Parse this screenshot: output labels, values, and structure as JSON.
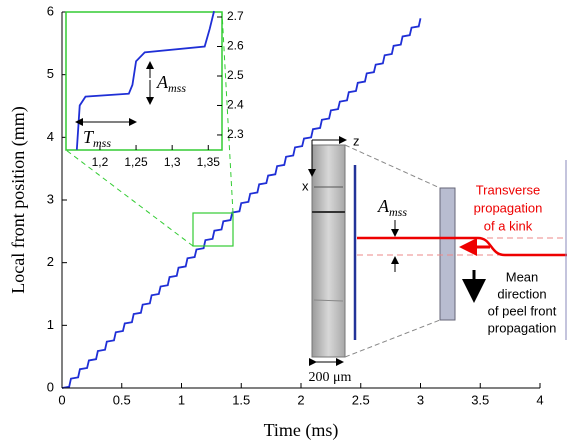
{
  "chart_data": [
    {
      "type": "line",
      "x_label": "Time (ms)",
      "y_label": "Local front position (mm)",
      "color": "#1f2fd6",
      "xlim": [
        0,
        4
      ],
      "ylim": [
        0,
        6
      ],
      "xticks": [
        0,
        0.5,
        1,
        1.5,
        2,
        2.5,
        3,
        3.5,
        4
      ],
      "yticks": [
        0,
        1,
        2,
        3,
        4,
        5,
        6
      ],
      "x": [
        0,
        0.06,
        0.075,
        0.135,
        0.15,
        0.21,
        0.225,
        0.285,
        0.3,
        0.36,
        0.375,
        0.435,
        0.45,
        0.51,
        0.525,
        0.585,
        0.6,
        0.66,
        0.675,
        0.735,
        0.75,
        0.81,
        0.825,
        0.885,
        0.9,
        0.96,
        0.975,
        1.035,
        1.05,
        1.11,
        1.125,
        1.185,
        1.2,
        1.26,
        1.275,
        1.335,
        1.35,
        1.41,
        1.425,
        1.485,
        1.5,
        1.56,
        1.575,
        1.635,
        1.65,
        1.71,
        1.725,
        1.785,
        1.8,
        1.86,
        1.875,
        1.935,
        1.95,
        2.01,
        2.025,
        2.085,
        2.1,
        2.16,
        2.175,
        2.235,
        2.25,
        2.31,
        2.325,
        2.385,
        2.4,
        2.46,
        2.475,
        2.535,
        2.55,
        2.61,
        2.625,
        2.685,
        2.7,
        2.76,
        2.775,
        2.835,
        2.85,
        2.91,
        2.925,
        2.985,
        3.0
      ],
      "values": [
        0,
        0.02,
        0.15,
        0.17,
        0.3,
        0.32,
        0.44,
        0.46,
        0.59,
        0.61,
        0.74,
        0.76,
        0.89,
        0.91,
        1.03,
        1.05,
        1.18,
        1.2,
        1.33,
        1.35,
        1.48,
        1.5,
        1.62,
        1.64,
        1.77,
        1.79,
        1.92,
        1.94,
        2.07,
        2.09,
        2.21,
        2.23,
        2.36,
        2.38,
        2.51,
        2.53,
        2.66,
        2.68,
        2.8,
        2.82,
        2.95,
        2.97,
        3.1,
        3.12,
        3.25,
        3.27,
        3.39,
        3.41,
        3.54,
        3.56,
        3.69,
        3.71,
        3.84,
        3.86,
        3.98,
        4.0,
        4.13,
        4.15,
        4.28,
        4.3,
        4.43,
        4.45,
        4.57,
        4.59,
        4.72,
        4.74,
        4.87,
        4.89,
        5.02,
        5.04,
        5.16,
        5.18,
        5.31,
        5.33,
        5.46,
        5.48,
        5.61,
        5.63,
        5.75,
        5.77,
        5.9
      ],
      "annotations": {
        "z": "z",
        "x": "x",
        "scale": "200 μm",
        "amp": {
          "main": "A",
          "sub": "mss"
        },
        "kink": [
          "Transverse",
          "propagation",
          "of a kink"
        ],
        "mean": [
          "Mean",
          "direction",
          "of peel front",
          "propagation"
        ]
      }
    },
    {
      "type": "line",
      "color": "#1f2fd6",
      "xlim": [
        1.153,
        1.369
      ],
      "ylim": [
        2.249,
        2.717
      ],
      "xticks": [
        {
          "value": 1.2,
          "label": "1,2"
        },
        {
          "value": 1.25,
          "label": "1,25"
        },
        {
          "value": 1.3,
          "label": "1,3"
        },
        {
          "value": 1.35,
          "label": "1,35"
        }
      ],
      "yticks": [
        2.3,
        2.4,
        2.5,
        2.6,
        2.7
      ],
      "x": [
        1.168,
        1.172,
        1.18,
        1.24,
        1.245,
        1.25,
        1.262,
        1.345,
        1.352,
        1.358
      ],
      "values": [
        2.25,
        2.4,
        2.43,
        2.44,
        2.47,
        2.55,
        2.58,
        2.6,
        2.66,
        2.72
      ],
      "annotations": {
        "amp": {
          "main": "A",
          "sub": "mss"
        },
        "period": {
          "main": "T",
          "sub": "mss"
        }
      }
    }
  ]
}
